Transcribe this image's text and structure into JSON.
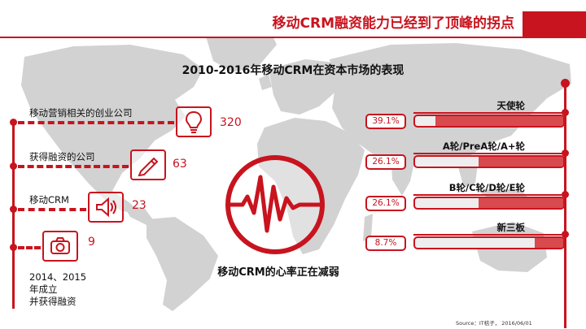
{
  "header": {
    "title": "移动CRM融资能力已经到了顶峰的拐点"
  },
  "subtitle": "2010-2016年移动CRM在资本市场的表现",
  "colors": {
    "accent": "#c8141e",
    "bar_fill": "#d94a4f",
    "map": "#d2d2d2"
  },
  "left_stats": [
    {
      "label": "移动营销相关的创业公司",
      "value": "320",
      "icon": "lightbulb-icon"
    },
    {
      "label": "获得融资的公司",
      "value": "63",
      "icon": "pencil-icon"
    },
    {
      "label": "移动CRM",
      "value": "23",
      "icon": "speaker-icon"
    },
    {
      "label_lines": [
        "2014、2015",
        "年成立",
        "并获得融资"
      ],
      "value": "9",
      "icon": "camera-icon"
    }
  ],
  "center": {
    "caption": "移动CRM的心率正在减弱",
    "icon": "heartbeat-icon"
  },
  "rounds": [
    {
      "label": "天使轮",
      "percent": "39.1%",
      "fill": 0.391
    },
    {
      "label": "A轮/PreA轮/A+轮",
      "percent": "26.1%",
      "fill": 0.261
    },
    {
      "label": "B轮/C轮/D轮/E轮",
      "percent": "26.1%",
      "fill": 0.261
    },
    {
      "label": "新三板",
      "percent": "8.7%",
      "fill": 0.087
    }
  ],
  "source": "Source：IT桔子，  2016/06/01"
}
